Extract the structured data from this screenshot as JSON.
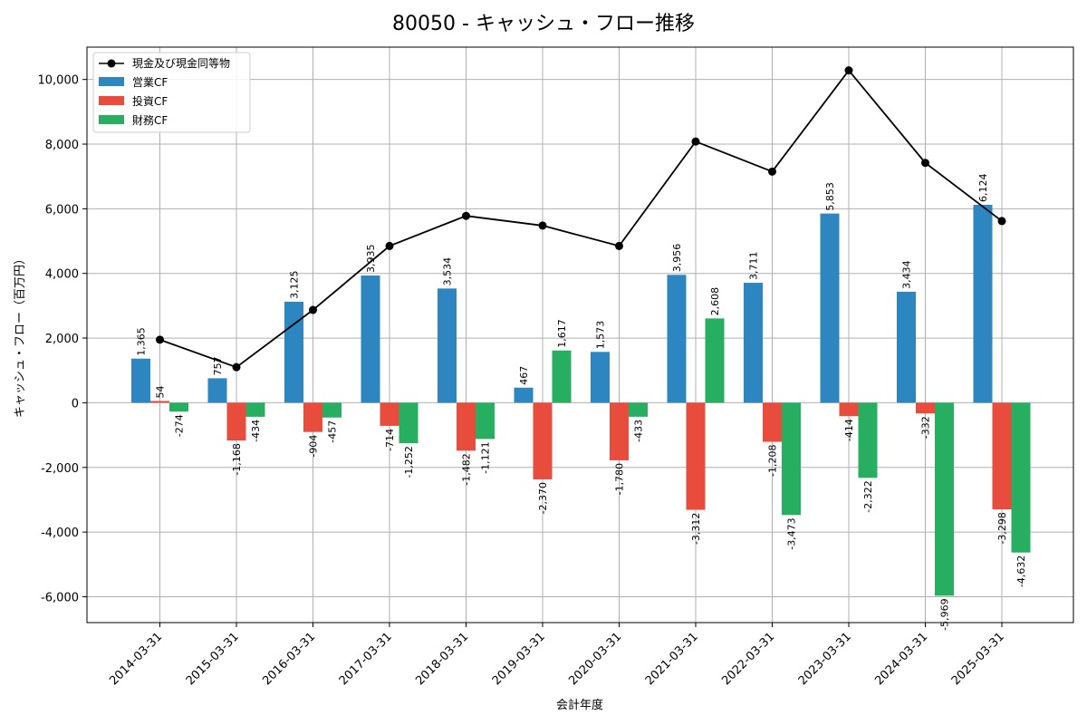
{
  "chart_data": {
    "type": "bar",
    "title": "80050 - キャッシュ・フロー推移",
    "xlabel": "会計年度",
    "ylabel": "キャッシュ・フロー（百万円）",
    "ylim": [
      -6800,
      11000
    ],
    "yticks": [
      -6000,
      -4000,
      -2000,
      0,
      2000,
      4000,
      6000,
      8000,
      10000
    ],
    "ytick_labels": [
      "-6,000",
      "-4,000",
      "-2,000",
      "0",
      "2,000",
      "4,000",
      "6,000",
      "8,000",
      "10,000"
    ],
    "grid": true,
    "legend_position": "top-left",
    "categories": [
      "2014-03-31",
      "2015-03-31",
      "2016-03-31",
      "2017-03-31",
      "2018-03-31",
      "2019-03-31",
      "2020-03-31",
      "2021-03-31",
      "2022-03-31",
      "2023-03-31",
      "2024-03-31",
      "2025-03-31"
    ],
    "line": {
      "name": "現金及び現金同等物",
      "color": "#000000",
      "values": [
        1950,
        1100,
        2870,
        4850,
        5780,
        5480,
        4850,
        8080,
        7150,
        10280,
        7420,
        5620
      ]
    },
    "series": [
      {
        "name": "営業CF",
        "color": "#2e86c1",
        "values": [
          1365,
          757,
          3125,
          3935,
          3534,
          467,
          1573,
          3956,
          3711,
          5853,
          3434,
          6124
        ],
        "labels": [
          "1,365",
          "757",
          "3,125",
          "3,935",
          "3,534",
          "467",
          "1,573",
          "3,956",
          "3,711",
          "5,853",
          "3,434",
          "6,124"
        ]
      },
      {
        "name": "投資CF",
        "color": "#e74c3c",
        "values": [
          54,
          -1168,
          -904,
          -714,
          -1482,
          -2370,
          -1780,
          -3312,
          -1208,
          -414,
          -332,
          -3298
        ],
        "labels": [
          "54",
          "-1,168",
          "-904",
          "-714",
          "-1,482",
          "-2,370",
          "-1,780",
          "-3,312",
          "-1,208",
          "-414",
          "-332",
          "-3,298"
        ]
      },
      {
        "name": "財務CF",
        "color": "#27ae60",
        "values": [
          -274,
          -434,
          -457,
          -1252,
          -1121,
          1617,
          -433,
          2608,
          -3473,
          -2322,
          -5969,
          -4632
        ],
        "labels": [
          "-274",
          "-434",
          "-457",
          "-1,252",
          "-1,121",
          "1,617",
          "-433",
          "2,608",
          "-3,473",
          "-2,322",
          "-5,969",
          "-4,632"
        ]
      }
    ]
  }
}
